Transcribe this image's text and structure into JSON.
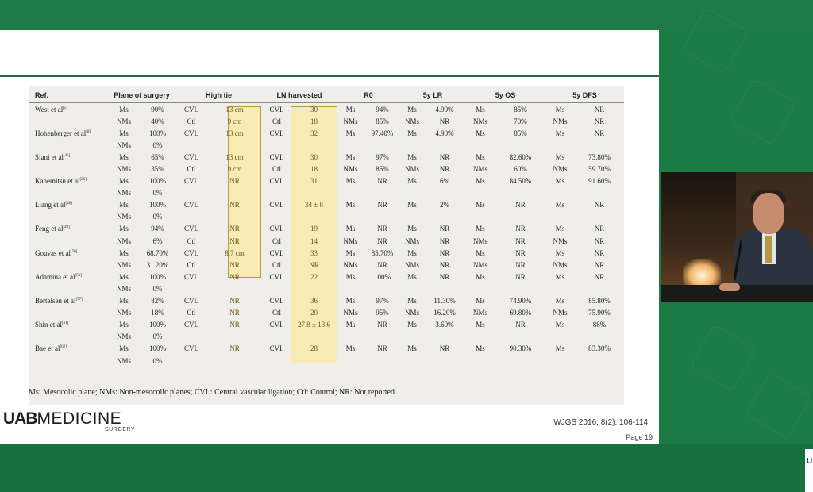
{
  "table": {
    "headers": [
      "Ref.",
      "Plane of surgery",
      "",
      "High tie",
      "",
      "LN harvested",
      "",
      "R0",
      "",
      "5y LR",
      "",
      "5y OS",
      "",
      "5y DFS",
      ""
    ],
    "rows": [
      {
        "ref": "West et al",
        "sup": "[5]",
        "c": [
          "Ms",
          "90%",
          "CVL",
          "13 cm",
          "CVL",
          "30",
          "Ms",
          "94%",
          "Ms",
          "4.90%",
          "Ms",
          "85%",
          "Ms",
          "NR"
        ]
      },
      {
        "ref": "",
        "sup": "",
        "c": [
          "NMs",
          "40%",
          "Ctl",
          "9 cm",
          "Ctl",
          "18",
          "NMs",
          "85%",
          "NMs",
          "NR",
          "NMs",
          "70%",
          "NMs",
          "NR"
        ]
      },
      {
        "ref": "Hohenberger et al",
        "sup": "[8]",
        "c": [
          "Ms",
          "100%",
          "CVL",
          "13 cm",
          "CVL",
          "32",
          "Ms",
          "97.40%",
          "Ms",
          "4.90%",
          "Ms",
          "85%",
          "Ms",
          "NR"
        ]
      },
      {
        "ref": "",
        "sup": "",
        "c": [
          "NMs",
          "0%",
          "",
          "",
          "",
          "",
          "",
          "",
          "",
          "",
          "",
          "",
          "",
          ""
        ]
      },
      {
        "ref": "Siani et al",
        "sup": "[45]",
        "c": [
          "Ms",
          "65%",
          "CVL",
          "13 cm",
          "CVL",
          "30",
          "Ms",
          "97%",
          "Ms",
          "NR",
          "Ms",
          "82.60%",
          "Ms",
          "73.80%"
        ]
      },
      {
        "ref": "",
        "sup": "",
        "c": [
          "NMs",
          "35%",
          "Ctl",
          "9 cm",
          "Ctl",
          "18",
          "NMs",
          "85%",
          "NMs",
          "NR",
          "NMs",
          "60%",
          "NMs",
          "59.70%"
        ]
      },
      {
        "ref": "Kanemitsu et al",
        "sup": "[26]",
        "c": [
          "Ms",
          "100%",
          "CVL",
          "NR",
          "CVL",
          "31",
          "Ms",
          "NR",
          "Ms",
          "6%",
          "Ms",
          "84.50%",
          "Ms",
          "91.60%"
        ]
      },
      {
        "ref": "",
        "sup": "",
        "c": [
          "NMs",
          "0%",
          "",
          "",
          "",
          "",
          "",
          "",
          "",
          "",
          "",
          "",
          "",
          ""
        ]
      },
      {
        "ref": "Liang et al",
        "sup": "[48]",
        "c": [
          "Ms",
          "100%",
          "CVL",
          "NR",
          "CVL",
          "34 ± 8",
          "Ms",
          "NR",
          "Ms",
          "2%",
          "Ms",
          "NR",
          "Ms",
          "NR"
        ]
      },
      {
        "ref": "",
        "sup": "",
        "c": [
          "NMs",
          "0%",
          "",
          "",
          "",
          "",
          "",
          "",
          "",
          "",
          "",
          "",
          "",
          ""
        ]
      },
      {
        "ref": "Feng et al",
        "sup": "[49]",
        "c": [
          "Ms",
          "94%",
          "CVL",
          "NR",
          "CVL",
          "19",
          "Ms",
          "NR",
          "Ms",
          "NR",
          "Ms",
          "NR",
          "Ms",
          "NR"
        ]
      },
      {
        "ref": "",
        "sup": "",
        "c": [
          "NMs",
          "6%",
          "Ctl",
          "NR",
          "Ctl",
          "14",
          "NMs",
          "NR",
          "NMs",
          "NR",
          "NMs",
          "NR",
          "NMs",
          "NR"
        ]
      },
      {
        "ref": "Gouvas et al",
        "sup": "[50]",
        "c": [
          "Ms",
          "68.70%",
          "CVL",
          "8.7 cm",
          "CVL",
          "33",
          "Ms",
          "85.70%",
          "Ms",
          "NR",
          "Ms",
          "NR",
          "Ms",
          "NR"
        ]
      },
      {
        "ref": "",
        "sup": "",
        "c": [
          "NMs",
          "31.20%",
          "Ctl",
          "NR",
          "Ctl",
          "NR",
          "NMs",
          "NR",
          "NMs",
          "NR",
          "NMs",
          "NR",
          "NMs",
          "NR"
        ]
      },
      {
        "ref": "Adamina et al",
        "sup": "[58]",
        "c": [
          "Ms",
          "100%",
          "CVL",
          "NR",
          "CVL",
          "22",
          "Ms",
          "100%",
          "Ms",
          "NR",
          "Ms",
          "NR",
          "Ms",
          "NR"
        ]
      },
      {
        "ref": "",
        "sup": "",
        "c": [
          "NMs",
          "0%",
          "",
          "",
          "",
          "",
          "",
          "",
          "",
          "",
          "",
          "",
          "",
          ""
        ]
      },
      {
        "ref": "Bertelsen et al",
        "sup": "[57]",
        "c": [
          "Ms",
          "82%",
          "CVL",
          "NR",
          "CVL",
          "36",
          "Ms",
          "97%",
          "Ms",
          "11.30%",
          "Ms",
          "74.90%",
          "Ms",
          "85.80%"
        ]
      },
      {
        "ref": "",
        "sup": "",
        "c": [
          "NMs",
          "18%",
          "Ctl",
          "NR",
          "Ctl",
          "20",
          "NMs",
          "95%",
          "NMs",
          "16.20%",
          "NMs",
          "69.80%",
          "NMs",
          "75.90%"
        ]
      },
      {
        "ref": "Shin et al",
        "sup": "[61]",
        "c": [
          "Ms",
          "100%",
          "CVL",
          "NR",
          "CVL",
          "27.8 ± 13.6",
          "Ms",
          "NR",
          "Ms",
          "3.60%",
          "Ms",
          "NR",
          "Ms",
          "88%"
        ]
      },
      {
        "ref": "",
        "sup": "",
        "c": [
          "NMs",
          "0%",
          "",
          "",
          "",
          "",
          "",
          "",
          "",
          "",
          "",
          "",
          "",
          ""
        ]
      },
      {
        "ref": "Bae et al",
        "sup": "[62]",
        "c": [
          "Ms",
          "100%",
          "CVL",
          "NR",
          "CVL",
          "28",
          "Ms",
          "NR",
          "Ms",
          "NR",
          "Ms",
          "90.30%",
          "Ms",
          "83.30%"
        ]
      },
      {
        "ref": "",
        "sup": "",
        "c": [
          "NMs",
          "0%",
          "",
          "",
          "",
          "",
          "",
          "",
          "",
          "",
          "",
          "",
          "",
          ""
        ]
      }
    ]
  },
  "footnote": "Ms: Mesocolic plane; NMs: Non-mesocolic planes; CVL: Central vascular ligation; Ctl: Control; NR: Not reported.",
  "logo": {
    "uab": "UAB",
    "medicine": "MEDICINE",
    "sub": "SURGERY"
  },
  "citation": "WJGS 2016; 8(2): 106-114",
  "page": "Page 19",
  "highlight_color": "#f8ecb5",
  "brand_green": "#1c7a45"
}
